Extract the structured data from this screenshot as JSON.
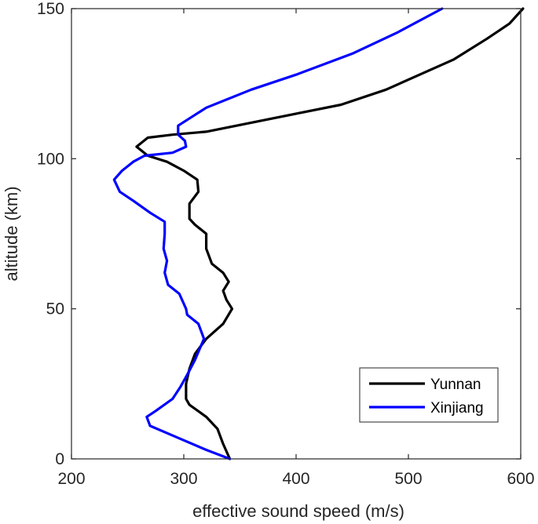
{
  "chart_data": {
    "type": "line",
    "title": "",
    "xlabel": "effective sound speed (m/s)",
    "ylabel": "altitude (km)",
    "xlim": [
      200,
      600
    ],
    "ylim": [
      0,
      150
    ],
    "xticks": [
      "200",
      "300",
      "400",
      "500",
      "600"
    ],
    "yticks": [
      "0",
      "50",
      "100",
      "150"
    ],
    "grid": false,
    "legend_position": "bottom-right",
    "series": [
      {
        "name": "Yunnan",
        "color": "#000000",
        "points": [
          [
            341,
            0
          ],
          [
            335,
            5
          ],
          [
            330,
            10
          ],
          [
            320,
            14
          ],
          [
            305,
            18
          ],
          [
            302,
            20
          ],
          [
            302,
            25
          ],
          [
            305,
            30
          ],
          [
            310,
            35
          ],
          [
            320,
            40
          ],
          [
            335,
            45
          ],
          [
            343,
            50
          ],
          [
            338,
            53
          ],
          [
            335,
            56
          ],
          [
            340,
            59
          ],
          [
            335,
            62
          ],
          [
            325,
            65
          ],
          [
            320,
            70
          ],
          [
            320,
            75
          ],
          [
            310,
            78
          ],
          [
            305,
            80
          ],
          [
            305,
            85
          ],
          [
            313,
            89
          ],
          [
            312,
            93
          ],
          [
            300,
            96
          ],
          [
            285,
            99
          ],
          [
            268,
            101
          ],
          [
            258,
            104
          ],
          [
            268,
            107
          ],
          [
            290,
            108
          ],
          [
            320,
            109
          ],
          [
            360,
            112
          ],
          [
            400,
            115
          ],
          [
            440,
            118
          ],
          [
            480,
            123
          ],
          [
            540,
            133
          ],
          [
            570,
            140
          ],
          [
            590,
            145
          ],
          [
            602,
            150
          ]
        ]
      },
      {
        "name": "Xinjiang",
        "color": "#0000ff",
        "points": [
          [
            341,
            0
          ],
          [
            320,
            3
          ],
          [
            295,
            7
          ],
          [
            270,
            11
          ],
          [
            267,
            14
          ],
          [
            275,
            16
          ],
          [
            290,
            20
          ],
          [
            297,
            24
          ],
          [
            303,
            28
          ],
          [
            310,
            33
          ],
          [
            318,
            40
          ],
          [
            313,
            45
          ],
          [
            303,
            48
          ],
          [
            302,
            50
          ],
          [
            296,
            55
          ],
          [
            286,
            58
          ],
          [
            283,
            62
          ],
          [
            285,
            66
          ],
          [
            282,
            70
          ],
          [
            283,
            75
          ],
          [
            283,
            79
          ],
          [
            270,
            82
          ],
          [
            255,
            86
          ],
          [
            243,
            89
          ],
          [
            238,
            93
          ],
          [
            245,
            96
          ],
          [
            255,
            99
          ],
          [
            265,
            101
          ],
          [
            290,
            102
          ],
          [
            302,
            104
          ],
          [
            301,
            106
          ],
          [
            295,
            108
          ],
          [
            295,
            111
          ],
          [
            320,
            117
          ],
          [
            360,
            123
          ],
          [
            400,
            128
          ],
          [
            450,
            135
          ],
          [
            490,
            142
          ],
          [
            530,
            150
          ]
        ]
      }
    ]
  }
}
